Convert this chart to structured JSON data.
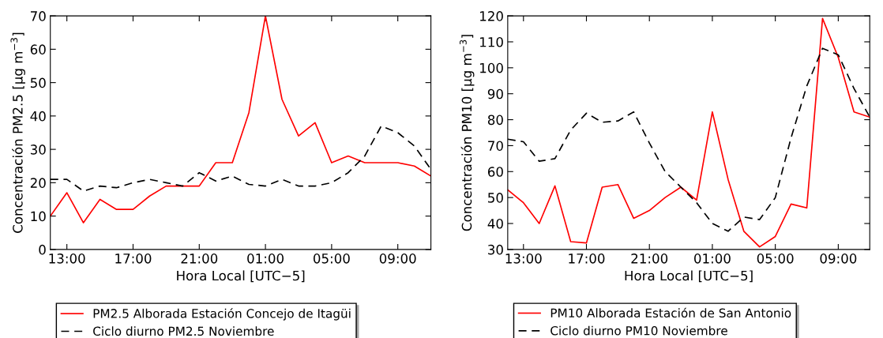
{
  "chart_data": [
    {
      "type": "line",
      "ylabel": "Concentración PM2.5 [μg m$^{−3}$]",
      "xlabel": "Hora Local [UTC−5]",
      "categories": [
        null,
        "13:00",
        null,
        null,
        null,
        "17:00",
        null,
        null,
        null,
        "21:00",
        null,
        null,
        null,
        "01:00",
        null,
        null,
        null,
        "05:00",
        null,
        null,
        null,
        "09:00",
        null,
        null
      ],
      "series": [
        {
          "name": "PM2.5 Alborada Estación Concejo de Itagüi",
          "color": "#ff0000",
          "line_style": "solid",
          "values": [
            10,
            17,
            8,
            15,
            12,
            12,
            16,
            19,
            19,
            19,
            26,
            26,
            41,
            70,
            45,
            34,
            38,
            26,
            28,
            26,
            26,
            26,
            25,
            22
          ]
        },
        {
          "name": "Ciclo diurno PM2.5 Noviembre",
          "color": "#000000",
          "line_style": "dashed",
          "values": [
            21,
            21,
            17.5,
            19,
            18.5,
            20,
            21,
            20,
            19,
            23,
            20.5,
            22,
            19.5,
            19,
            21,
            19,
            19,
            20,
            23,
            28,
            37,
            35,
            31,
            24
          ]
        }
      ],
      "ylim": [
        0,
        70
      ],
      "yticks": [
        0,
        10,
        20,
        30,
        40,
        50,
        60,
        70
      ],
      "grid": false,
      "legend": "bottom",
      "marker": "none"
    },
    {
      "type": "line",
      "ylabel": "Concentración PM10 [μg m$^{−3}$]",
      "xlabel": "Hora Local [UTC−5]",
      "categories": [
        null,
        "13:00",
        null,
        null,
        null,
        "17:00",
        null,
        null,
        null,
        "21:00",
        null,
        null,
        null,
        "01:00",
        null,
        null,
        null,
        "05:00",
        null,
        null,
        null,
        "09:00",
        null,
        null
      ],
      "series": [
        {
          "name": "PM10 Alborada Estación de San Antonio",
          "color": "#ff0000",
          "line_style": "solid",
          "values": [
            53,
            48,
            40,
            54.5,
            33,
            32.5,
            54,
            55,
            42,
            45,
            50,
            54,
            49,
            83,
            57,
            37,
            31,
            35,
            47.5,
            46,
            119,
            104,
            83,
            81
          ]
        },
        {
          "name": "Ciclo diurno PM10 Noviembre",
          "color": "#000000",
          "line_style": "dashed",
          "values": [
            72.5,
            71.5,
            64,
            65,
            76,
            82.5,
            79,
            79.5,
            83,
            71,
            60,
            54,
            48,
            40,
            37,
            42.5,
            41.5,
            50,
            73,
            93,
            107.5,
            105,
            92,
            81
          ]
        }
      ],
      "ylim": [
        30,
        120
      ],
      "yticks": [
        30,
        40,
        50,
        60,
        70,
        80,
        90,
        100,
        110,
        120
      ],
      "grid": false,
      "legend": "bottom",
      "marker": "none"
    }
  ]
}
